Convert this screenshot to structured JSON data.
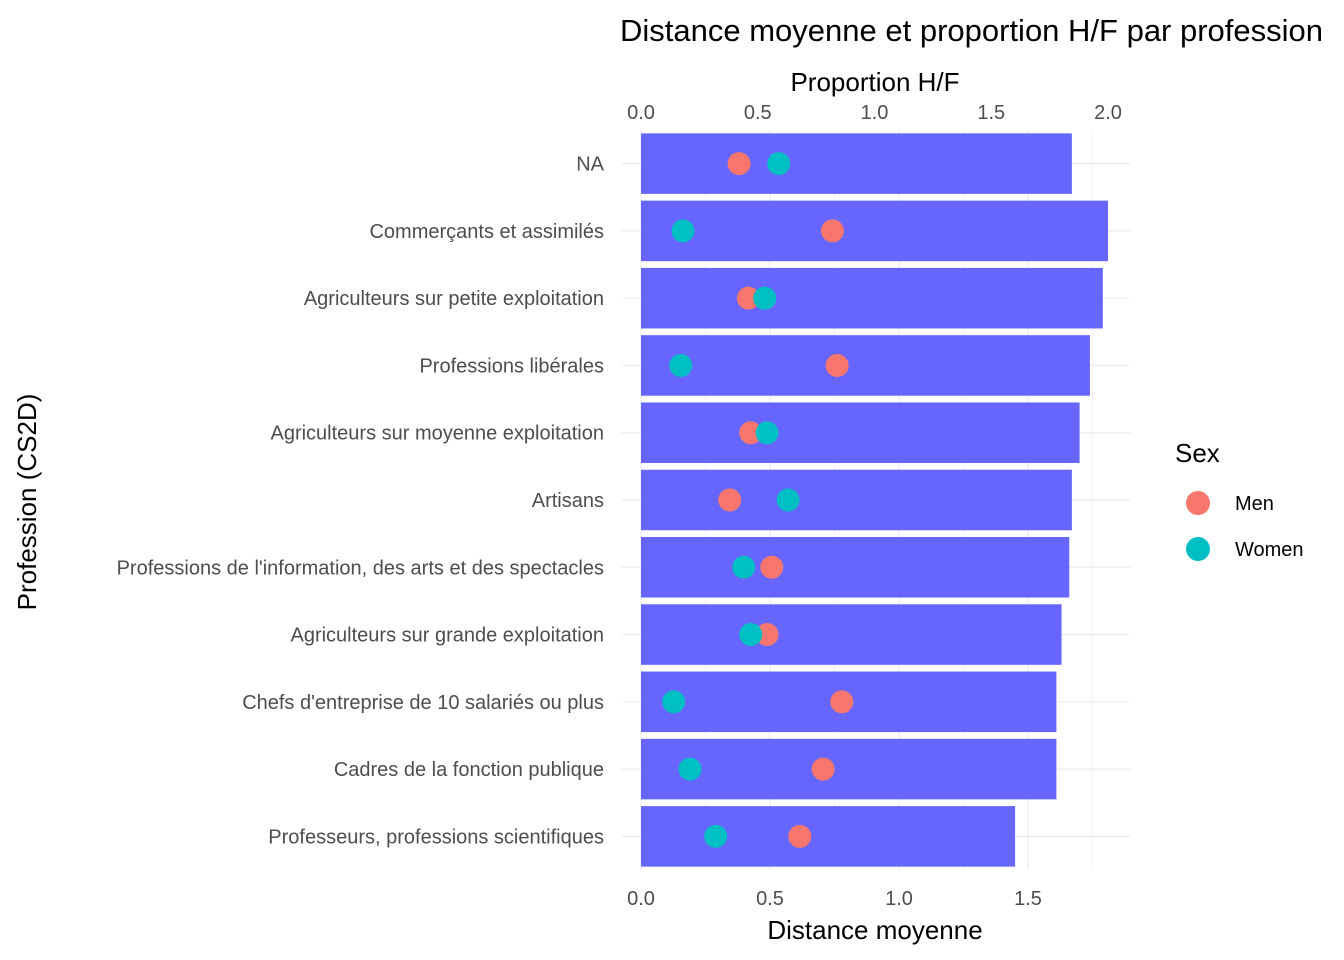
{
  "chart_data": {
    "type": "bar",
    "title": "Distance moyenne et proportion H/F par profession",
    "xlabel": "Distance moyenne",
    "x2label": "Proportion H/F",
    "ylabel": "Profession (CS2D)",
    "xlim": [
      0,
      1.9
    ],
    "x2lim": [
      0,
      2.1
    ],
    "xticks": [
      "0.0",
      "0.5",
      "1.0",
      "1.5"
    ],
    "x2ticks": [
      "0.0",
      "0.5",
      "1.0",
      "1.5",
      "2.0"
    ],
    "grid": true,
    "bar_color": "#6666ff",
    "categories": [
      "NA",
      "Commerçants et assimilés",
      "Agriculteurs sur petite exploitation",
      "Professions libérales",
      "Agriculteurs sur moyenne exploitation",
      "Artisans",
      "Professions de l'information, des arts et des spectacles",
      "Agriculteurs sur grande exploitation",
      "Chefs d'entreprise de 10 salariés ou plus",
      "Cadres de la fonction publique",
      "Professeurs, professions scientifiques"
    ],
    "values": [
      1.67,
      1.81,
      1.79,
      1.74,
      1.7,
      1.67,
      1.66,
      1.63,
      1.61,
      1.61,
      1.45
    ],
    "series": [
      {
        "name": "Men",
        "color": "#f8766d",
        "values": [
          0.42,
          0.82,
          0.46,
          0.84,
          0.47,
          0.38,
          0.56,
          0.54,
          0.86,
          0.78,
          0.68
        ]
      },
      {
        "name": "Women",
        "color": "#00bfc4",
        "values": [
          0.59,
          0.18,
          0.53,
          0.17,
          0.54,
          0.63,
          0.44,
          0.47,
          0.14,
          0.21,
          0.32
        ]
      }
    ],
    "legend": {
      "title": "Sex",
      "position": "right"
    }
  }
}
